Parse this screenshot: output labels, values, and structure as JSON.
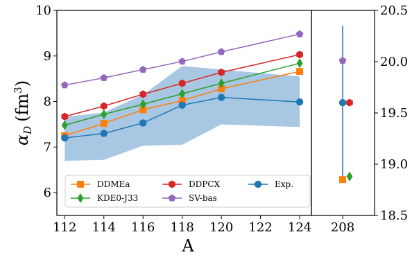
{
  "chart_data": {
    "type": "line",
    "xlabel": "A",
    "ylabel_symbol": "α",
    "ylabel_sub": "D",
    "ylabel_unit": "(fm",
    "ylabel_unit_sup": "3",
    "ylabel_unit_close": ")",
    "left_panel": {
      "x": [
        112,
        114,
        116,
        118,
        120,
        124
      ],
      "xlim": [
        111.6,
        124.6
      ],
      "xticks": [
        "112",
        "114",
        "116",
        "118",
        "120",
        "122",
        "124"
      ],
      "xtick_values": [
        112,
        114,
        116,
        118,
        120,
        122,
        124
      ],
      "ylim": [
        5.5,
        10
      ],
      "yticks": [
        "6",
        "7",
        "8",
        "9",
        "10"
      ],
      "ytick_values": [
        6,
        7,
        8,
        9,
        10
      ],
      "band": {
        "color": "#a7c7e3",
        "x": [
          112,
          114,
          116,
          118,
          120,
          124
        ],
        "lower": [
          6.7,
          6.72,
          7.03,
          7.05,
          7.5,
          7.44
        ],
        "upper": [
          7.66,
          7.76,
          8.15,
          8.78,
          8.7,
          8.55
        ]
      },
      "series": [
        {
          "name": "DDMEa",
          "color": "#ff7f0e",
          "marker": "square",
          "values": [
            7.25,
            7.52,
            7.82,
            8.02,
            8.28,
            8.66
          ]
        },
        {
          "name": "KDE0-J33",
          "color": "#2ca02c",
          "marker": "diamond",
          "values": [
            7.48,
            7.72,
            7.94,
            8.17,
            8.4,
            8.84
          ]
        },
        {
          "name": "DDPCX",
          "color": "#d62728",
          "marker": "hexagon",
          "values": [
            7.67,
            7.9,
            8.16,
            8.4,
            8.64,
            9.03
          ]
        },
        {
          "name": "SV-bas",
          "color": "#9467bd",
          "marker": "pentagon",
          "values": [
            8.36,
            8.52,
            8.7,
            8.88,
            9.09,
            9.48
          ]
        },
        {
          "name": "Exp.",
          "color": "#1f77b4",
          "marker": "circle",
          "values": [
            7.2,
            7.3,
            7.53,
            7.92,
            8.09,
            7.99
          ]
        }
      ]
    },
    "right_panel": {
      "xticks": [
        "208"
      ],
      "ylim": [
        18.5,
        20.5
      ],
      "yticks": [
        "18.5",
        "19.0",
        "19.5",
        "20.0",
        "20.5"
      ],
      "ytick_values": [
        18.5,
        19.0,
        19.5,
        20.0,
        20.5
      ],
      "points": [
        {
          "name": "Exp.",
          "color": "#1f77b4",
          "marker": "circle",
          "value": 19.6,
          "error": 0.75
        },
        {
          "name": "SV-bas",
          "color": "#9467bd",
          "marker": "pentagon",
          "value": 20.01
        },
        {
          "name": "DDPCX",
          "color": "#d62728",
          "marker": "hexagon",
          "value": 19.6
        },
        {
          "name": "DDMEa",
          "color": "#ff7f0e",
          "marker": "square",
          "value": 18.85
        },
        {
          "name": "KDE0-J33",
          "color": "#2ca02c",
          "marker": "diamond",
          "value": 18.88
        }
      ]
    },
    "legend": {
      "placement": "lower-center",
      "columns": 3,
      "order": [
        "DDMEa",
        "KDE0-J33",
        "DDPCX",
        "SV-bas",
        "Exp."
      ]
    }
  }
}
